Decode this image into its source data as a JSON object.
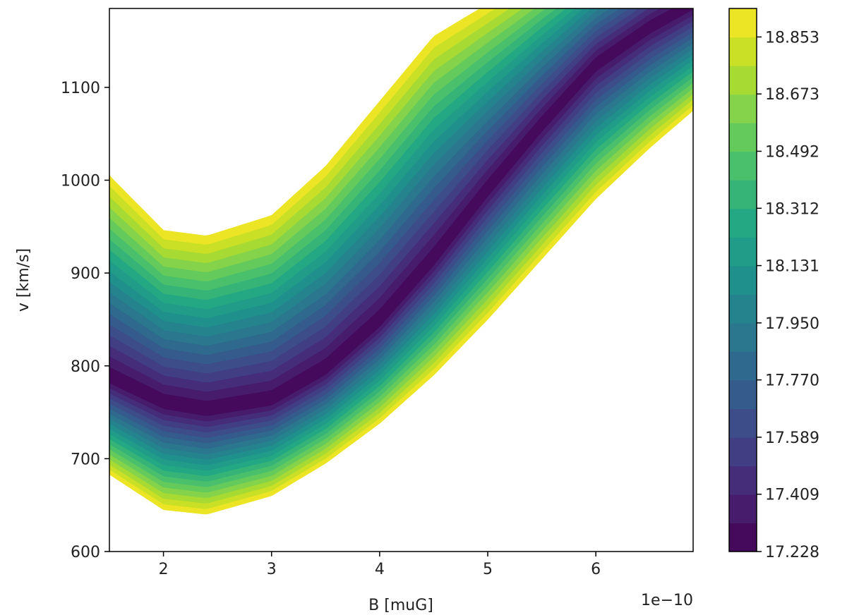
{
  "chart_data": {
    "type": "heatmap",
    "subtype": "filled-contour",
    "xlabel": "B [muG]",
    "ylabel": "v [km/s]",
    "x_offset_text": "1e−10",
    "x_scale": 1e-10,
    "xlim": [
      1.5,
      6.9
    ],
    "ylim": [
      600,
      1185
    ],
    "x_ticks": [
      2,
      3,
      4,
      5,
      6
    ],
    "x_tick_labels": [
      "2",
      "3",
      "4",
      "5",
      "6"
    ],
    "y_ticks": [
      600,
      700,
      800,
      900,
      1000,
      1100
    ],
    "y_tick_labels": [
      "600",
      "700",
      "800",
      "900",
      "1000",
      "1100"
    ],
    "colormap": "viridis",
    "colorbar": {
      "levels": [
        17.228,
        17.409,
        17.589,
        17.77,
        17.95,
        18.131,
        18.312,
        18.492,
        18.673,
        18.853
      ],
      "tick_labels": [
        "17.228",
        "17.409",
        "17.589",
        "17.770",
        "17.950",
        "18.131",
        "18.312",
        "18.492",
        "18.673",
        "18.853"
      ],
      "min": 17.228,
      "max": 18.943,
      "n_bands": 19
    },
    "valley": {
      "description_points_B": [
        1.5,
        2.0,
        2.4,
        3.0,
        3.5,
        4.0,
        4.5,
        5.0,
        5.5,
        6.0,
        6.5,
        6.9
      ],
      "min_v": [
        787,
        760,
        752,
        763,
        796,
        848,
        915,
        990,
        1060,
        1125,
        1165,
        1190
      ],
      "min_value": 17.228
    },
    "region_boundary": {
      "upper_edge": {
        "B": [
          1.5,
          2.0,
          2.4,
          3.0,
          3.5,
          4.0,
          4.5,
          5.0
        ],
        "v": [
          1005,
          946,
          940,
          962,
          1015,
          1085,
          1155,
          1190
        ]
      },
      "lower_edge": {
        "B": [
          1.5,
          2.0,
          2.4,
          3.0,
          3.5,
          4.0,
          4.5,
          5.0,
          5.5,
          6.0,
          6.5,
          6.9
        ],
        "v": [
          683,
          645,
          640,
          660,
          695,
          738,
          790,
          850,
          915,
          980,
          1035,
          1075
        ]
      }
    }
  }
}
